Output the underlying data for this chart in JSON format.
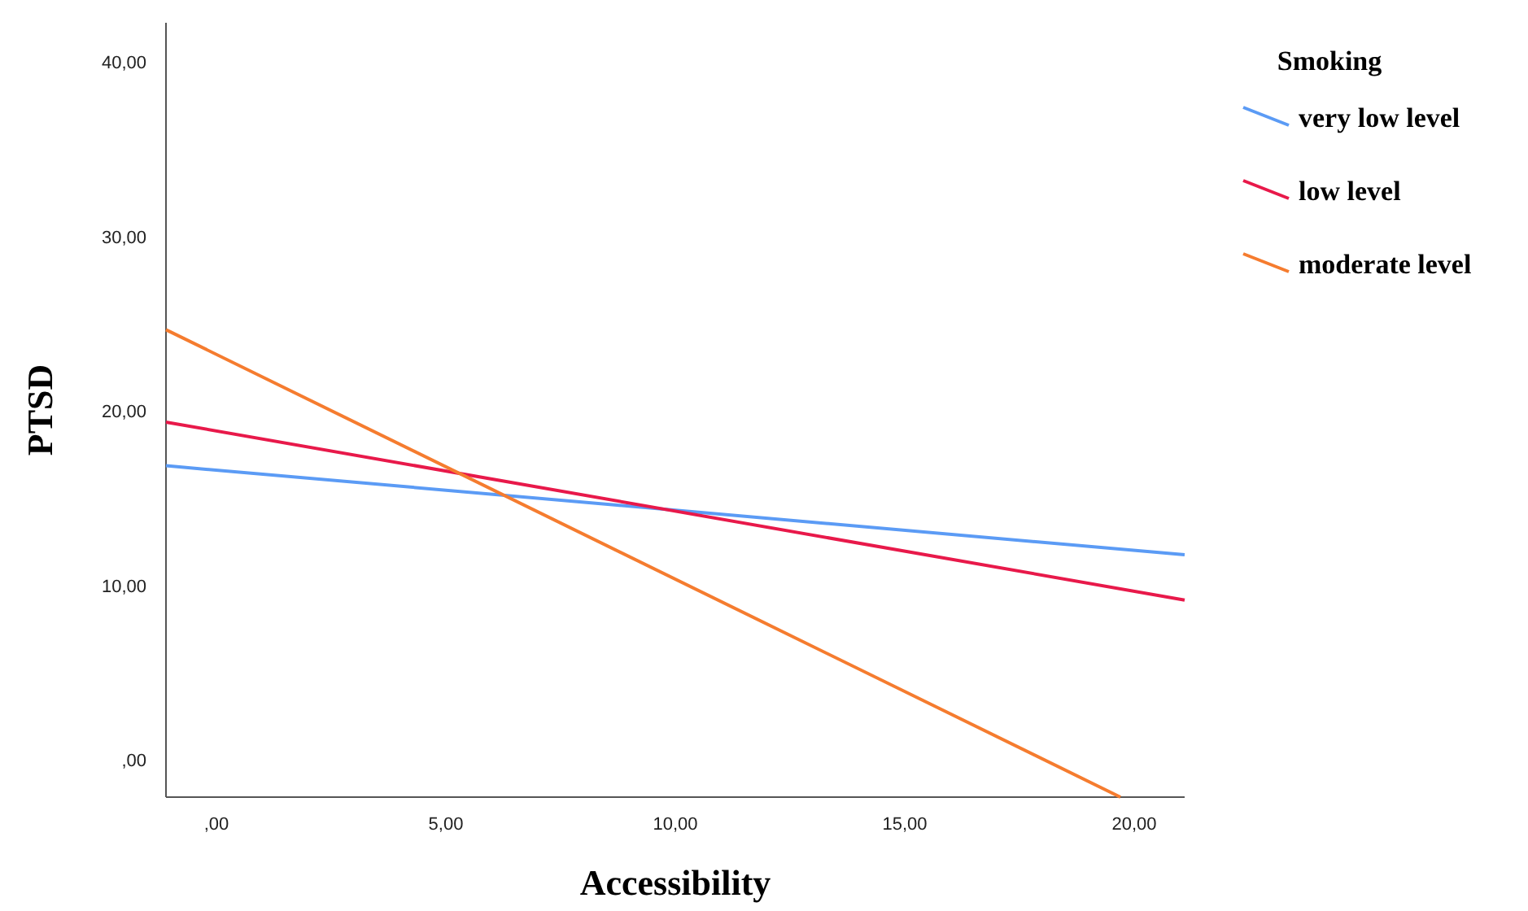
{
  "chart_data": {
    "type": "line",
    "xlabel": "Accessibility",
    "ylabel": "PTSD",
    "legend_title": "Smoking",
    "legend": "top right",
    "grid": false,
    "marker": "none",
    "line_style": "solid",
    "xlim": [
      -1.1,
      21.1
    ],
    "ylim": [
      -2.1,
      42.3
    ],
    "xticks": [
      {
        "value": 0,
        "label": ",00"
      },
      {
        "value": 5,
        "label": "5,00"
      },
      {
        "value": 10,
        "label": "10,00"
      },
      {
        "value": 15,
        "label": "15,00"
      },
      {
        "value": 20,
        "label": "20,00"
      }
    ],
    "yticks": [
      {
        "value": 0,
        "label": ",00"
      },
      {
        "value": 10,
        "label": "10,00"
      },
      {
        "value": 20,
        "label": "20,00"
      },
      {
        "value": 30,
        "label": "30,00"
      },
      {
        "value": 40,
        "label": "40,00"
      }
    ],
    "series": [
      {
        "name": "very low level",
        "color": "#5b9bf5",
        "x": [
          -1.1,
          21.1
        ],
        "values": [
          16.9,
          11.8
        ]
      },
      {
        "name": "low level",
        "color": "#e8194a",
        "x": [
          -1.1,
          21.1
        ],
        "values": [
          19.4,
          9.2
        ]
      },
      {
        "name": "moderate level",
        "color": "#f57c2f",
        "x": [
          -1.1,
          19.7
        ],
        "values": [
          24.7,
          -2.1
        ]
      }
    ]
  }
}
